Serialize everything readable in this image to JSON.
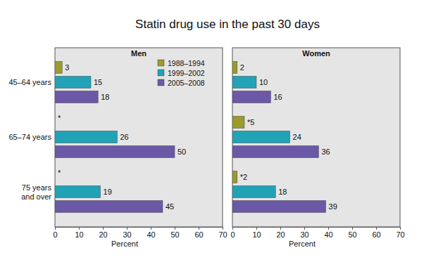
{
  "title": "Statin drug use in the past 30 days",
  "chart_data": [
    {
      "type": "bar",
      "title": "Men",
      "orientation": "horizontal",
      "data_labels": true,
      "grid": false,
      "legend": "top-right",
      "categories": [
        "45–64 years",
        "65–74 years",
        "75 years and over"
      ],
      "xlabel": "Percent",
      "xlim": [
        0,
        70
      ],
      "xticks": [
        0,
        10,
        20,
        30,
        40,
        50,
        60,
        70
      ],
      "series": [
        {
          "name": "1988–1994",
          "color": "#9a9b2c",
          "values": [
            3,
            null,
            null
          ],
          "value_labels": [
            "3",
            "*",
            "*"
          ]
        },
        {
          "name": "1999–2002",
          "color": "#22a2b6",
          "values": [
            15,
            26,
            19
          ]
        },
        {
          "name": "2005–2008",
          "color": "#6b58a6",
          "values": [
            18,
            50,
            45
          ]
        }
      ]
    },
    {
      "type": "bar",
      "title": "Women",
      "orientation": "horizontal",
      "data_labels": true,
      "grid": false,
      "categories": [
        null,
        null,
        null
      ],
      "xlabel": "Percent",
      "xlim": [
        0,
        70
      ],
      "xticks": [
        0,
        10,
        20,
        30,
        40,
        50,
        60,
        70
      ],
      "series": [
        {
          "color": "#9a9b2c",
          "values": [
            2,
            5,
            2
          ],
          "value_labels": [
            "2",
            "*5",
            "*2"
          ]
        },
        {
          "color": "#22a2b6",
          "values": [
            10,
            24,
            18
          ]
        },
        {
          "color": "#6b58a6",
          "values": [
            16,
            36,
            39
          ]
        }
      ]
    }
  ]
}
